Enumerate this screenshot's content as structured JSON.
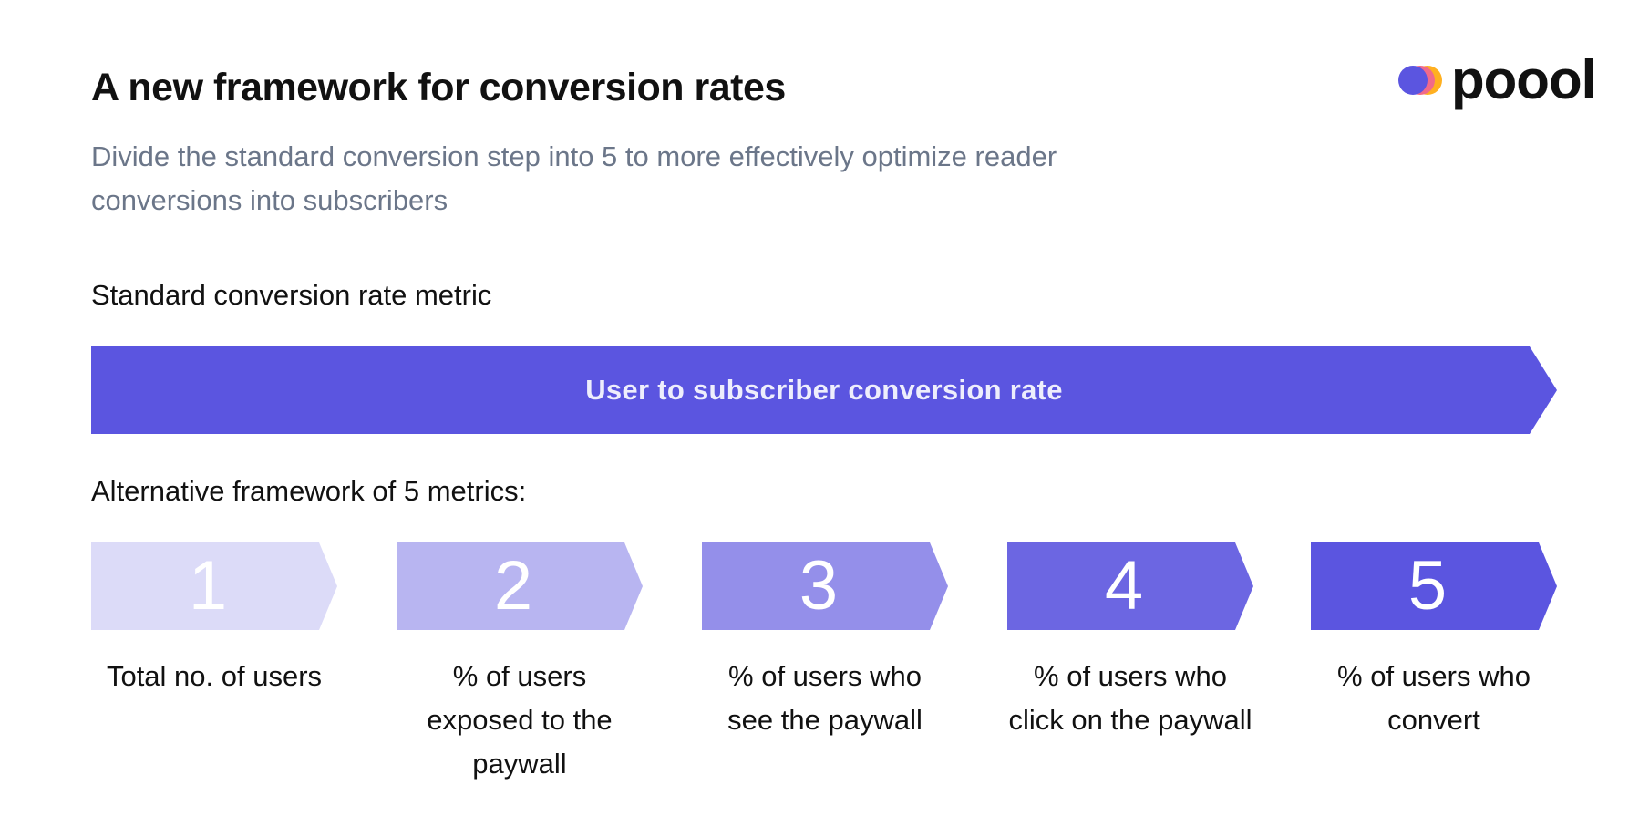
{
  "header": {
    "title": "A new framework for conversion rates",
    "subtitle": "Divide the standard conversion step into 5 to more effectively optimize reader conversions into subscribers"
  },
  "logo": {
    "text": "poool",
    "icon": "overlapping-circles-logo-icon",
    "colors": [
      "#5b55e0",
      "#f06a8a",
      "#ffb020"
    ]
  },
  "standard": {
    "label": "Standard conversion rate metric",
    "arrow_label": "User to subscriber conversion rate",
    "color": "#5b55e0"
  },
  "alternative": {
    "label": "Alternative framework of 5 metrics:",
    "steps": [
      {
        "number": "1",
        "description": "Total no. of users",
        "color": "#dcdbf8"
      },
      {
        "number": "2",
        "description": "% of users exposed to the paywall",
        "color": "#b8b5f1"
      },
      {
        "number": "3",
        "description": "% of users who see the paywall",
        "color": "#948fea"
      },
      {
        "number": "4",
        "description": "% of users who click on the paywall",
        "color": "#6c66e2"
      },
      {
        "number": "5",
        "description": "% of users who convert",
        "color": "#5b55e0"
      }
    ]
  }
}
